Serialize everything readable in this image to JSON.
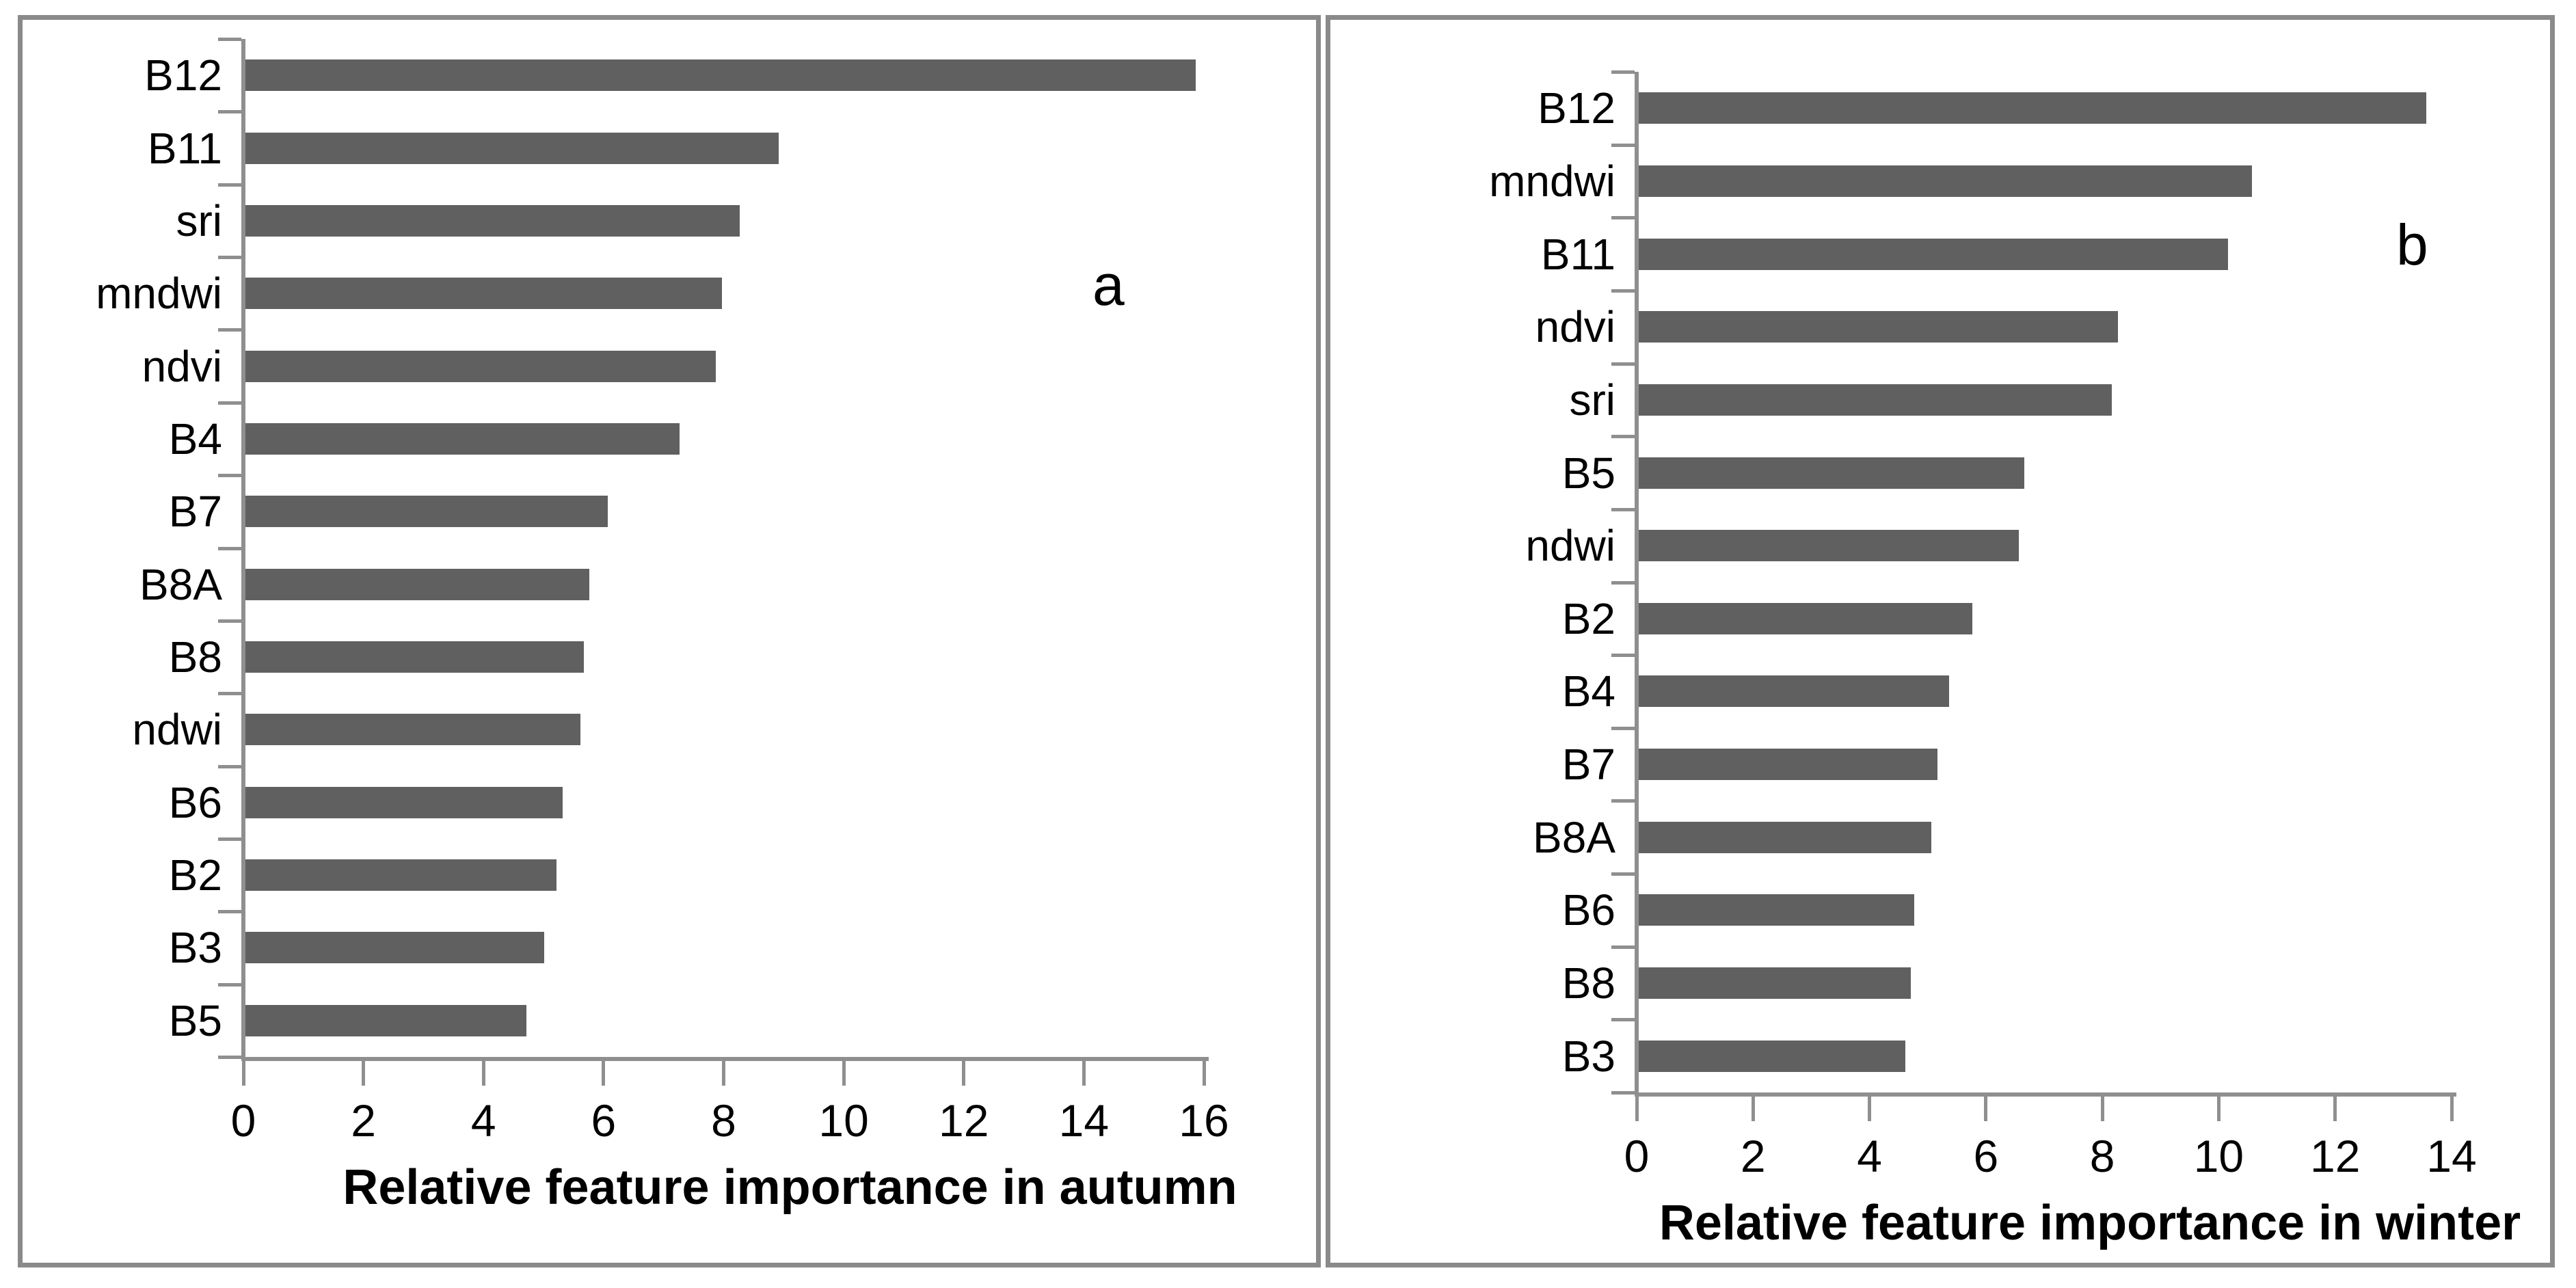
{
  "figure": {
    "background": "#ffffff",
    "panel_border_color": "#8a8a8a",
    "axis_color": "#8f8f8f",
    "bar_color": "#606060",
    "text_color": "#000000"
  },
  "chart_data": [
    {
      "type": "bar",
      "orientation": "horizontal",
      "panel_letter": "a",
      "xlabel": "Relative feature importance in autumn",
      "categories": [
        "B12",
        "B11",
        "sri",
        "mndwi",
        "ndvi",
        "B4",
        "B7",
        "B8A",
        "B8",
        "ndwi",
        "B6",
        "B2",
        "B3",
        "B5"
      ],
      "values": [
        15.9,
        8.95,
        8.3,
        8.0,
        7.9,
        7.3,
        6.1,
        5.8,
        5.7,
        5.65,
        5.35,
        5.25,
        5.05,
        4.75
      ],
      "xlim": [
        0,
        16
      ],
      "xticks": [
        0,
        2,
        4,
        6,
        8,
        10,
        12,
        14,
        16
      ],
      "grid": false,
      "legend": false
    },
    {
      "type": "bar",
      "orientation": "horizontal",
      "panel_letter": "b",
      "xlabel": "Relative feature importance in winter",
      "categories": [
        "B12",
        "mndwi",
        "B11",
        "ndvi",
        "sri",
        "B5",
        "ndwi",
        "B2",
        "B4",
        "B7",
        "B8A",
        "B6",
        "B8",
        "B3"
      ],
      "values": [
        13.6,
        10.6,
        10.2,
        8.3,
        8.2,
        6.7,
        6.6,
        5.8,
        5.4,
        5.2,
        5.1,
        4.8,
        4.75,
        4.65
      ],
      "xlim": [
        0,
        14
      ],
      "xticks": [
        0,
        2,
        4,
        6,
        8,
        10,
        12,
        14
      ],
      "grid": false,
      "legend": false
    }
  ]
}
